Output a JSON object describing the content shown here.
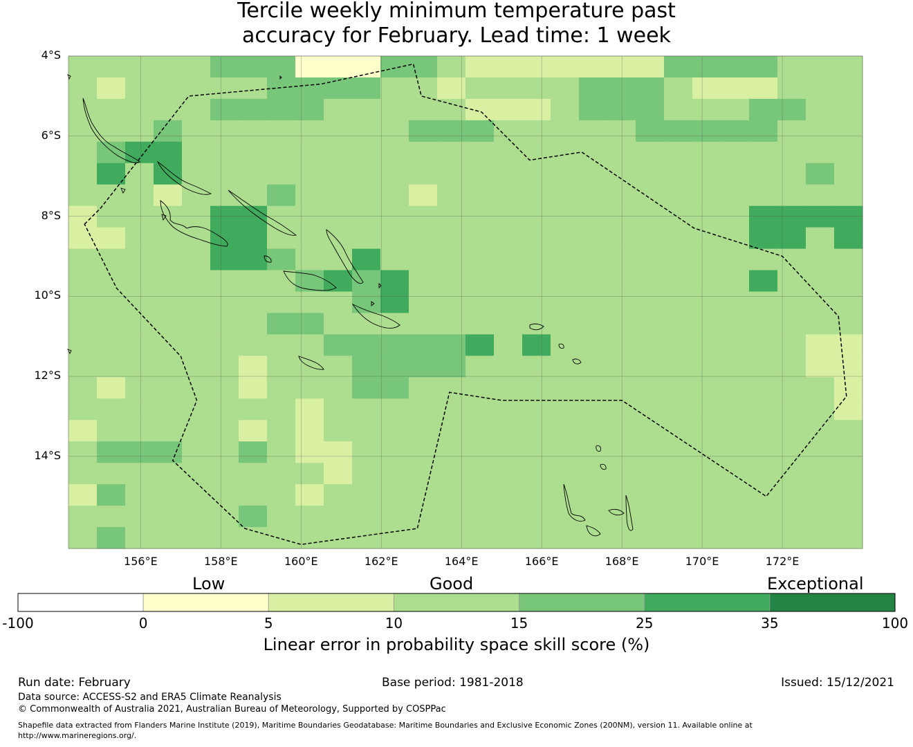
{
  "title": {
    "line1": "Tercile weekly minimum temperature past",
    "line2": "accuracy for February. Lead time: 1 week"
  },
  "map": {
    "lon_range": [
      154.2,
      174.0
    ],
    "lat_range": [
      -16.3,
      -4.0
    ],
    "cell_size_deg": 0.833,
    "y_ticks": [
      "4°S",
      "6°S",
      "8°S",
      "10°S",
      "12°S",
      "14°S"
    ],
    "y_tick_values": [
      -4,
      -6,
      -8,
      -10,
      -12,
      -14
    ],
    "x_ticks": [
      "156°E",
      "158°E",
      "160°E",
      "162°E",
      "164°E",
      "166°E",
      "168°E",
      "170°E",
      "172°E"
    ],
    "x_tick_values": [
      156,
      158,
      160,
      162,
      164,
      166,
      168,
      170,
      172
    ],
    "grid_rows_code": [
      "3333344411144322222224444333",
      "3233333444433233334443222333",
      "3333344443333322234443334433",
      "3334333333334443333344444333",
      "3455333333333333333333333333",
      "3535333333333333333333333343",
      "3332333433332333333333333333",
      "2333355333333333333333335555",
      "2233355333333333333333335535",
      "3333355433533333333333333333",
      "3333333345453333333333335333",
      "3333333333453333333333333333",
      "3333333443333333333333333333",
      "3333333334444453533333333322",
      "3333332333444433333333333322",
      "3233332333443333333333333332",
      "3333333323333333333333333332",
      "2333332323333333333333333333",
      "3444334322333333333333333333",
      "3333333332333333333333333333",
      "2433333323333333333333333333",
      "3333334333333333333333333333",
      "3433333333333333333333333333"
    ],
    "boundary_path": [
      [
        154.6,
        -8.2
      ],
      [
        155.0,
        -7.8
      ],
      [
        157.2,
        -5.0
      ],
      [
        160.5,
        -4.7
      ],
      [
        162.8,
        -4.2
      ],
      [
        163.0,
        -5.0
      ],
      [
        164.5,
        -5.4
      ],
      [
        165.7,
        -6.6
      ],
      [
        167.0,
        -6.4
      ],
      [
        169.8,
        -8.3
      ],
      [
        172.0,
        -9.0
      ],
      [
        173.4,
        -10.5
      ],
      [
        173.6,
        -12.5
      ],
      [
        171.6,
        -15.0
      ],
      [
        168.0,
        -12.6
      ],
      [
        165.0,
        -12.6
      ],
      [
        163.7,
        -12.4
      ],
      [
        162.9,
        -15.8
      ],
      [
        160.0,
        -16.2
      ],
      [
        158.6,
        -15.8
      ],
      [
        156.8,
        -14.1
      ],
      [
        157.4,
        -12.6
      ],
      [
        157.0,
        -11.5
      ],
      [
        155.4,
        -9.8
      ],
      [
        154.6,
        -8.2
      ]
    ],
    "colors": {
      "cat0": "#ffffff",
      "cat1": "#ffffcc",
      "cat2": "#d9f0a3",
      "cat3": "#addd8e",
      "cat4": "#78c679",
      "cat5": "#41ab5d",
      "cat6": "#238443"
    }
  },
  "colorbar": {
    "categories": [
      "Low",
      "Good",
      "Exceptional"
    ],
    "ticks": [
      "-100",
      "0",
      "5",
      "10",
      "15",
      "25",
      "35",
      "100"
    ],
    "colors": [
      "#ffffff",
      "#ffffcc",
      "#d9f0a3",
      "#addd8e",
      "#78c679",
      "#41ab5d",
      "#238443"
    ],
    "label": "Linear error in probability space skill score (%)"
  },
  "footer": {
    "run_date": "Run date: February",
    "base_period": "Base period: 1981-2018",
    "issued": "Issued: 15/12/2021",
    "data_source": "Data source: ACCESS-S2 and ERA5 Climate Reanalysis",
    "copyright": "© Commonwealth of Australia 2021, Australian Bureau of Meteorology, Supported by COSPPac",
    "shapefile_line1": "Shapefile data extracted from Flanders Marine Institute (2019), Maritime Boundaries Geodatabase: Maritime Boundaries and Exclusive Economic Zones (200NM), version 11. Available online at",
    "shapefile_line2": "http://www.marineregions.org/."
  }
}
